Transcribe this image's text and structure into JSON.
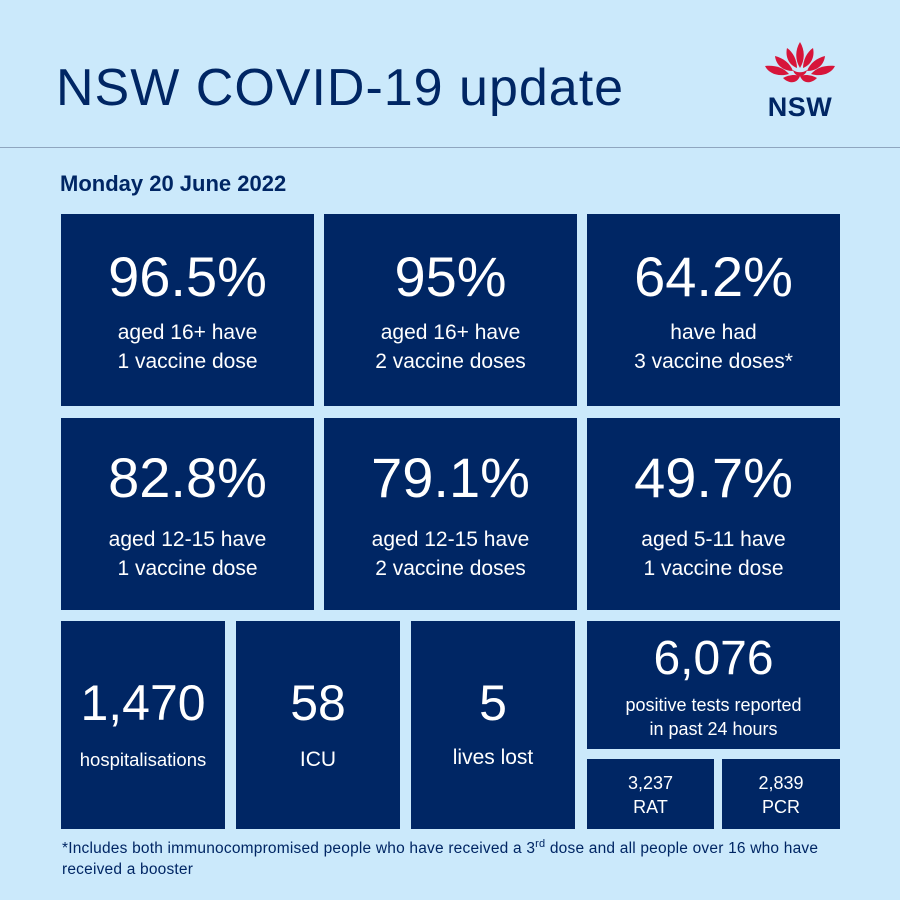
{
  "header": {
    "title": "NSW COVID-19 update",
    "logo_text": "NSW"
  },
  "date": "Monday 20 June 2022",
  "vaccination": [
    {
      "value": "96.5%",
      "line1": "aged 16+ have",
      "line2": "1 vaccine dose"
    },
    {
      "value": "95%",
      "line1": "aged 16+ have",
      "line2": "2 vaccine doses"
    },
    {
      "value": "64.2%",
      "line1": "have had",
      "line2": "3 vaccine doses*"
    },
    {
      "value": "82.8%",
      "line1": "aged 12-15 have",
      "line2": "1 vaccine dose"
    },
    {
      "value": "79.1%",
      "line1": "aged 12-15 have",
      "line2": "2 vaccine doses"
    },
    {
      "value": "49.7%",
      "line1": "aged 5-11 have",
      "line2": "1 vaccine dose"
    }
  ],
  "stats": {
    "hospitalisations": {
      "value": "1,470",
      "label": "hospitalisations"
    },
    "icu": {
      "value": "58",
      "label": "ICU"
    },
    "deaths": {
      "value": "5",
      "label": "lives lost"
    },
    "positive": {
      "value": "6,076",
      "line1": "positive tests reported",
      "line2": "in past 24 hours"
    },
    "rat": {
      "value": "3,237",
      "label": "RAT"
    },
    "pcr": {
      "value": "2,839",
      "label": "PCR"
    }
  },
  "footnote": {
    "part1": "*Includes both immunocompromised people who have received a 3",
    "sup": "rd",
    "part2": " dose and all people over 16 who have received a booster"
  },
  "colors": {
    "background": "#cbe9fb",
    "tile": "#002664",
    "waratah": "#d7153a"
  }
}
